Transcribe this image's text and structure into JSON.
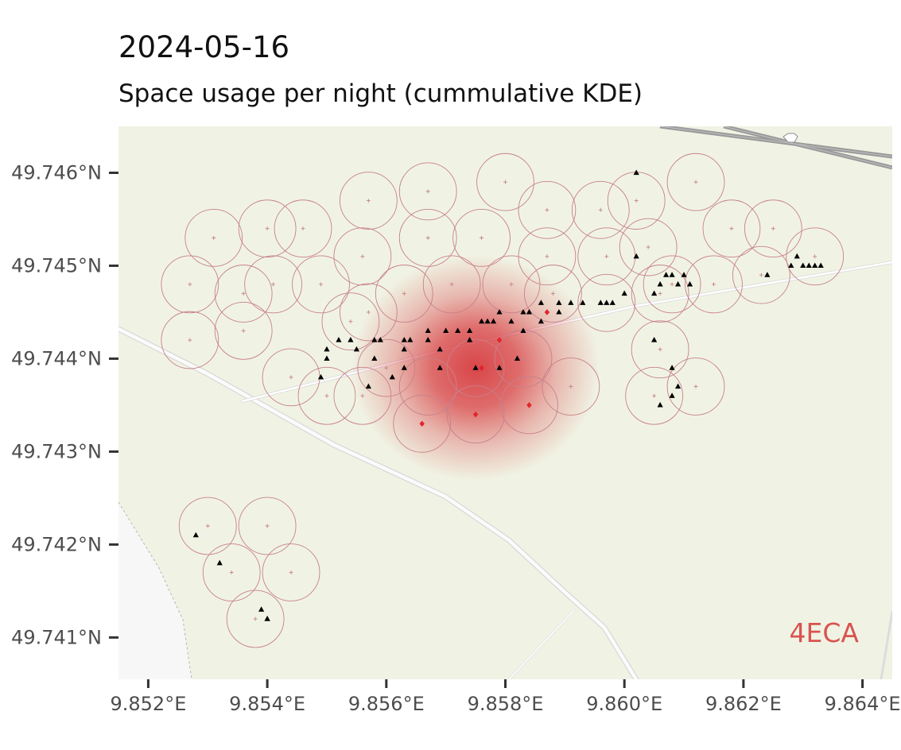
{
  "title": "2024-05-16",
  "subtitle": "Space usage per night (cummulative KDE)",
  "tag_label": "4ECA",
  "colors": {
    "land": "#f0f3e4",
    "urban": "#f7f7f7",
    "kde": "#d7373c",
    "circle": "#c8808a",
    "road": "#ffffff",
    "motorway": "#9a9a9a",
    "point": "#000000",
    "highlight": "#e0252b",
    "tag": "#d9534f",
    "tick": "#4d4d4d"
  },
  "chart_data": {
    "type": "map",
    "crs": "WGS84",
    "x_ticks": [
      {
        "value": 9.852,
        "label": "9.852°E"
      },
      {
        "value": 9.854,
        "label": "9.854°E"
      },
      {
        "value": 9.856,
        "label": "9.856°E"
      },
      {
        "value": 9.858,
        "label": "9.858°E"
      },
      {
        "value": 9.86,
        "label": "9.860°E"
      },
      {
        "value": 9.862,
        "label": "9.862°E"
      },
      {
        "value": 9.864,
        "label": "9.864°E"
      }
    ],
    "y_ticks": [
      {
        "value": 49.746,
        "label": "49.746°N"
      },
      {
        "value": 49.745,
        "label": "49.745°N"
      },
      {
        "value": 49.744,
        "label": "49.744°N"
      },
      {
        "value": 49.743,
        "label": "49.743°N"
      },
      {
        "value": 49.742,
        "label": "49.742°N"
      },
      {
        "value": 49.741,
        "label": "49.741°N"
      }
    ],
    "xlim": [
      9.8515,
      9.8645
    ],
    "ylim": [
      49.74055,
      49.7465
    ],
    "kde_hotspot": {
      "lon": 9.8575,
      "lat": 49.7439,
      "sigma_lon": 0.0011,
      "sigma_lat": 0.00064
    },
    "buffer_radius_lon": 0.00048,
    "buffer_centers": [
      [
        9.8527,
        49.7448
      ],
      [
        9.8531,
        49.7453
      ],
      [
        9.8536,
        49.7447
      ],
      [
        9.854,
        49.7454
      ],
      [
        9.8546,
        49.7454
      ],
      [
        9.8527,
        49.7442
      ],
      [
        9.8536,
        49.7443
      ],
      [
        9.8541,
        49.7448
      ],
      [
        9.8549,
        49.7448
      ],
      [
        9.8554,
        49.7444
      ],
      [
        9.8557,
        49.7445
      ],
      [
        9.8557,
        49.7457
      ],
      [
        9.8567,
        49.7458
      ],
      [
        9.858,
        49.7459
      ],
      [
        9.8587,
        49.7456
      ],
      [
        9.8596,
        49.7456
      ],
      [
        9.8602,
        49.7457
      ],
      [
        9.8612,
        49.7459
      ],
      [
        9.8625,
        49.7454
      ],
      [
        9.8618,
        49.7454
      ],
      [
        9.8556,
        49.7451
      ],
      [
        9.8567,
        49.7453
      ],
      [
        9.8576,
        49.7453
      ],
      [
        9.8587,
        49.7451
      ],
      [
        9.8597,
        49.7451
      ],
      [
        9.8604,
        49.7452
      ],
      [
        9.8608,
        49.7448
      ],
      [
        9.8615,
        49.7448
      ],
      [
        9.8623,
        49.7449
      ],
      [
        9.8632,
        49.7451
      ],
      [
        9.8563,
        49.7447
      ],
      [
        9.8571,
        49.7448
      ],
      [
        9.8581,
        49.7448
      ],
      [
        9.8588,
        49.7447
      ],
      [
        9.8597,
        49.7446
      ],
      [
        9.8606,
        49.7447
      ],
      [
        9.8544,
        49.7438
      ],
      [
        9.855,
        49.7436
      ],
      [
        9.8556,
        49.7436
      ],
      [
        9.856,
        49.7439
      ],
      [
        9.8567,
        49.7437
      ],
      [
        9.8575,
        49.7439
      ],
      [
        9.8583,
        49.744
      ],
      [
        9.8591,
        49.7437
      ],
      [
        9.8566,
        49.7433
      ],
      [
        9.8575,
        49.7434
      ],
      [
        9.8584,
        49.7435
      ],
      [
        9.8606,
        49.7441
      ],
      [
        9.8605,
        49.7436
      ],
      [
        9.8612,
        49.7437
      ],
      [
        9.853,
        49.7422
      ],
      [
        9.854,
        49.7422
      ],
      [
        9.8534,
        49.7417
      ],
      [
        9.8544,
        49.7417
      ],
      [
        9.8538,
        49.7412
      ]
    ],
    "points": [
      [
        9.8602,
        49.746
      ],
      [
        9.8602,
        49.7451
      ],
      [
        9.855,
        49.7441
      ],
      [
        9.855,
        49.744
      ],
      [
        9.8552,
        49.7442
      ],
      [
        9.8554,
        49.7442
      ],
      [
        9.8555,
        49.7441
      ],
      [
        9.8549,
        49.7438
      ],
      [
        9.8558,
        49.7442
      ],
      [
        9.8559,
        49.7442
      ],
      [
        9.8563,
        49.7442
      ],
      [
        9.8564,
        49.7442
      ],
      [
        9.8563,
        49.7441
      ],
      [
        9.8567,
        49.7443
      ],
      [
        9.8567,
        49.7442
      ],
      [
        9.8569,
        49.7441
      ],
      [
        9.857,
        49.7443
      ],
      [
        9.8572,
        49.7443
      ],
      [
        9.8574,
        49.7443
      ],
      [
        9.8574,
        49.7442
      ],
      [
        9.8576,
        49.7444
      ],
      [
        9.8577,
        49.7444
      ],
      [
        9.8578,
        49.7444
      ],
      [
        9.8579,
        49.7445
      ],
      [
        9.8581,
        49.7444
      ],
      [
        9.8583,
        49.7445
      ],
      [
        9.8583,
        49.7443
      ],
      [
        9.8584,
        49.7445
      ],
      [
        9.8586,
        49.7446
      ],
      [
        9.8586,
        49.7444
      ],
      [
        9.8589,
        49.7446
      ],
      [
        9.8589,
        49.7445
      ],
      [
        9.8591,
        49.7446
      ],
      [
        9.8593,
        49.7446
      ],
      [
        9.8596,
        49.7446
      ],
      [
        9.8597,
        49.7446
      ],
      [
        9.8598,
        49.7446
      ],
      [
        9.86,
        49.7447
      ],
      [
        9.8605,
        49.7447
      ],
      [
        9.8606,
        49.7448
      ],
      [
        9.8607,
        49.7449
      ],
      [
        9.8608,
        49.7449
      ],
      [
        9.8609,
        49.7448
      ],
      [
        9.861,
        49.7449
      ],
      [
        9.8611,
        49.7448
      ],
      [
        9.8605,
        49.7442
      ],
      [
        9.8608,
        49.7439
      ],
      [
        9.8608,
        49.7436
      ],
      [
        9.8606,
        49.7435
      ],
      [
        9.8609,
        49.7437
      ],
      [
        9.8558,
        49.744
      ],
      [
        9.8561,
        49.7438
      ],
      [
        9.8563,
        49.7439
      ],
      [
        9.8569,
        49.7439
      ],
      [
        9.8575,
        49.7439
      ],
      [
        9.8579,
        49.7439
      ],
      [
        9.8582,
        49.744
      ],
      [
        9.8557,
        49.7437
      ],
      [
        9.8624,
        49.7449
      ],
      [
        9.8628,
        49.745
      ],
      [
        9.8629,
        49.7451
      ],
      [
        9.863,
        49.745
      ],
      [
        9.8631,
        49.745
      ],
      [
        9.8632,
        49.745
      ],
      [
        9.8633,
        49.745
      ],
      [
        9.8528,
        49.7421
      ],
      [
        9.8532,
        49.7418
      ],
      [
        9.8539,
        49.7413
      ],
      [
        9.854,
        49.7412
      ],
      [
        9.854,
        49.7412
      ]
    ],
    "highlight_points": [
      [
        9.8587,
        49.7445
      ],
      [
        9.8579,
        49.7442
      ],
      [
        9.8576,
        49.7439
      ],
      [
        9.8566,
        49.7433
      ],
      [
        9.8575,
        49.7434
      ],
      [
        9.8584,
        49.7435
      ]
    ]
  }
}
